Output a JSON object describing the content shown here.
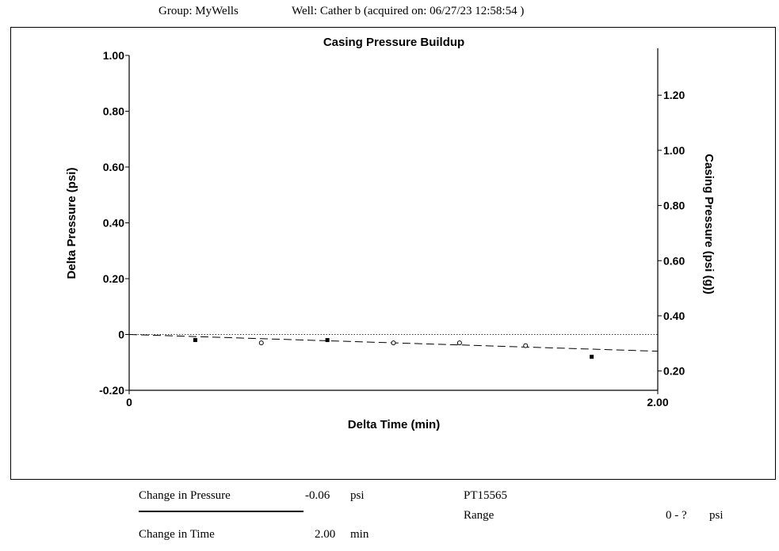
{
  "header": {
    "group": "Group: MyWells",
    "well": "Well: Cather b (acquired on: 06/27/23 12:58:54 )"
  },
  "chart_data": {
    "type": "scatter",
    "title": "Casing Pressure Buildup",
    "xlabel": "Delta Time (min)",
    "ylabel": "Delta Pressure (psi)",
    "y2label": "Casing Pressure (psi (g))",
    "xlim": [
      0,
      2.0
    ],
    "ylim": [
      -0.2,
      1.0
    ],
    "y2lim": [
      0.13,
      1.37
    ],
    "x_ticks": [
      "0",
      "2.00"
    ],
    "y_ticks": [
      "1.00",
      "0.80",
      "0.60",
      "0.40",
      "0.20",
      "0",
      "-0.20"
    ],
    "y2_ticks": [
      "1.20",
      "1.00",
      "0.80",
      "0.60",
      "0.40",
      "0.20"
    ],
    "series": [
      {
        "marker": "filled",
        "x": [
          0.25,
          0.75,
          1.75
        ],
        "y": [
          -0.02,
          -0.02,
          -0.08
        ]
      },
      {
        "marker": "open",
        "x": [
          0.5,
          1.0,
          1.25,
          1.5
        ],
        "y": [
          -0.03,
          -0.03,
          -0.03,
          -0.04
        ]
      }
    ],
    "trend_line": {
      "x": [
        0,
        2.0
      ],
      "y": [
        0,
        -0.06
      ],
      "style": "dashed"
    },
    "zero_line": {
      "y": 0,
      "style": "dotted"
    }
  },
  "footer": {
    "change_pressure_label": "Change in Pressure",
    "change_pressure_value": "-0.06",
    "change_pressure_unit": "psi",
    "change_time_label": "Change in Time",
    "change_time_value": "2.00",
    "change_time_unit": "min",
    "sensor_id": "PT15565",
    "range_label": "Range",
    "range_value": "0 - ?",
    "range_unit": "psi"
  }
}
